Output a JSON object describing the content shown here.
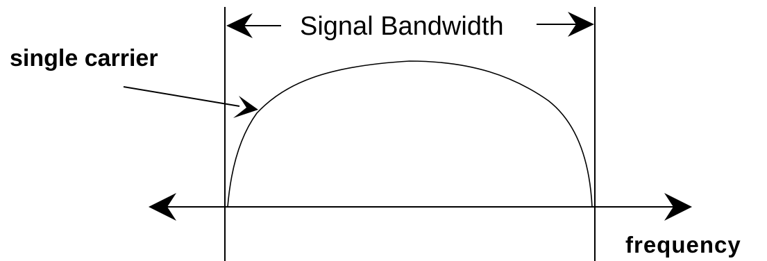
{
  "diagram": {
    "bandwidth_label": "Signal Bandwidth",
    "carrier_label": "single carrier",
    "axis_label": "frequency",
    "line_color": "#000000",
    "background_color": "#ffffff"
  }
}
